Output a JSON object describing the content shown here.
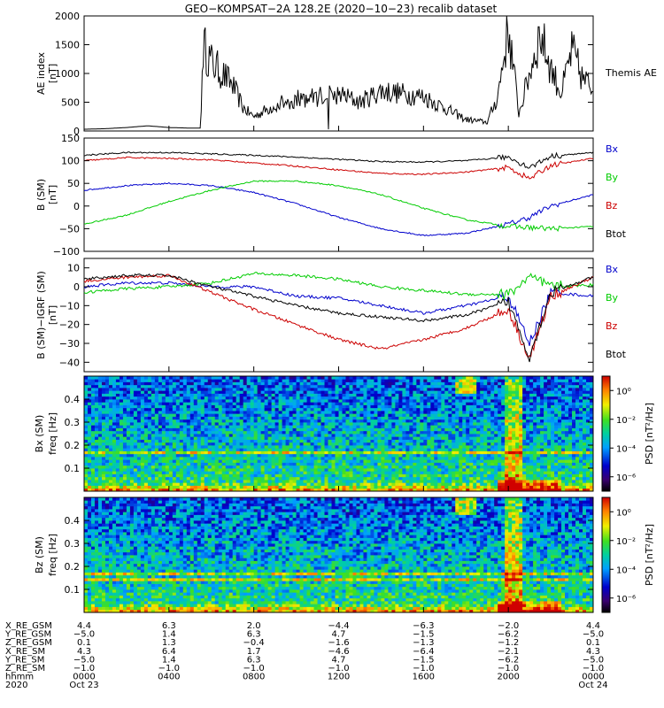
{
  "title": "GEO−KOMPSAT−2A 128.2E (2020−10−23) recalib dataset",
  "panels": {
    "ae": {
      "ylabel1": "AE index",
      "ylabel2": "[nT]",
      "yticks": [
        "0",
        "500",
        "1000",
        "1500",
        "2000"
      ],
      "side_label": "Themis AE"
    },
    "b_sm": {
      "ylabel1": "B (SM)",
      "ylabel2": "[nT]",
      "yticks": [
        "−100",
        "−50",
        "0",
        "50",
        "100",
        "150"
      ]
    },
    "db_sm": {
      "ylabel1": "B (SM)−IGRF (SM)",
      "ylabel2": "[nT]",
      "yticks": [
        "−40",
        "−30",
        "−20",
        "−10",
        "0",
        "10"
      ]
    },
    "spec_bx": {
      "ylabel1": "Bx (SM)",
      "ylabel2": "freq [Hz]",
      "yticks": [
        "0.1",
        "0.2",
        "0.3",
        "0.4"
      ],
      "cbar_label": "PSD [nT²/Hz]",
      "cbar_ticks": [
        "10⁰",
        "10⁻²",
        "10⁻⁴",
        "10⁻⁶"
      ]
    },
    "spec_bz": {
      "ylabel1": "Bz (SM)",
      "ylabel2": "freq [Hz]",
      "yticks": [
        "0.1",
        "0.2",
        "0.3",
        "0.4"
      ],
      "cbar_label": "PSD [nT²/Hz]",
      "cbar_ticks": [
        "10⁰",
        "10⁻²",
        "10⁻⁴",
        "10⁻⁶"
      ]
    }
  },
  "legend": [
    {
      "name": "Bx",
      "color": "#0000cc"
    },
    {
      "name": "By",
      "color": "#00cc00"
    },
    {
      "name": "Bz",
      "color": "#cc0000"
    },
    {
      "name": "Btot",
      "color": "#000000"
    }
  ],
  "ephemeris": {
    "rows": [
      {
        "label": "X_RE_GSM",
        "values": [
          "4.4",
          "6.3",
          "2.0",
          "−4.4",
          "−6.3",
          "−2.0",
          "4.4"
        ]
      },
      {
        "label": "Y_RE_GSM",
        "values": [
          "−5.0",
          "1.4",
          "6.3",
          "4.7",
          "−1.5",
          "−6.2",
          "−5.0"
        ]
      },
      {
        "label": "Z_RE_GSM",
        "values": [
          "0.1",
          "1.3",
          "−0.4",
          "−1.6",
          "−1.3",
          "−1.2",
          "0.1"
        ]
      },
      {
        "label": "X_RE_SM",
        "values": [
          "4.3",
          "6.4",
          "1.7",
          "−4.6",
          "−6.4",
          "−2.1",
          "4.3"
        ]
      },
      {
        "label": "Y_RE_SM",
        "values": [
          "−5.0",
          "1.4",
          "6.3",
          "4.7",
          "−1.5",
          "−6.2",
          "−5.0"
        ]
      },
      {
        "label": "Z_RE_SM",
        "values": [
          "−1.0",
          "−1.0",
          "−1.0",
          "−1.0",
          "−1.0",
          "−1.0",
          "−1.0"
        ]
      },
      {
        "label": "hhmm",
        "values": [
          "0000",
          "0400",
          "0800",
          "1200",
          "1600",
          "2000",
          "0000"
        ]
      },
      {
        "label": "2020",
        "values": [
          "Oct 23",
          "",
          "",
          "",
          "",
          "",
          "Oct 24"
        ]
      }
    ]
  },
  "chart_data": [
    {
      "type": "line",
      "title": "Themis AE",
      "ylabel": "AE index [nT]",
      "xlabel": "hhmm",
      "xlim": [
        0,
        24
      ],
      "ylim": [
        0,
        2000
      ],
      "series": [
        {
          "name": "AE",
          "x": [
            0,
            1,
            2,
            3,
            4,
            5,
            5.5,
            5.6,
            6,
            7,
            7.5,
            8,
            9,
            10,
            11,
            12,
            13,
            14,
            15,
            16,
            17,
            18,
            19,
            19.5,
            20,
            20.5,
            21,
            21.5,
            22,
            22.5,
            23,
            23.5,
            24
          ],
          "y": [
            30,
            40,
            60,
            90,
            60,
            50,
            50,
            1500,
            1200,
            800,
            400,
            250,
            450,
            550,
            600,
            650,
            500,
            700,
            650,
            600,
            400,
            200,
            150,
            600,
            1800,
            300,
            1000,
            1700,
            1100,
            650,
            1400,
            900,
            750
          ]
        }
      ]
    },
    {
      "type": "line",
      "title": "B (SM)",
      "ylabel": "B (SM) [nT]",
      "xlim": [
        0,
        24
      ],
      "ylim": [
        -100,
        150
      ],
      "series": [
        {
          "name": "Bx",
          "color": "#0000cc",
          "x": [
            0,
            2,
            4,
            6,
            8,
            10,
            12,
            14,
            16,
            18,
            20,
            21,
            22,
            24
          ],
          "y": [
            35,
            45,
            50,
            45,
            30,
            5,
            -25,
            -50,
            -65,
            -60,
            -40,
            -25,
            0,
            25
          ]
        },
        {
          "name": "By",
          "color": "#00cc00",
          "x": [
            0,
            2,
            4,
            6,
            8,
            10,
            12,
            14,
            16,
            18,
            20,
            22,
            24
          ],
          "y": [
            -40,
            -20,
            10,
            35,
            55,
            55,
            45,
            25,
            -5,
            -30,
            -45,
            -50,
            -45
          ]
        },
        {
          "name": "Bz",
          "color": "#cc0000",
          "x": [
            0,
            2,
            4,
            6,
            8,
            10,
            12,
            14,
            16,
            18,
            20,
            21,
            22,
            24
          ],
          "y": [
            100,
            107,
            105,
            102,
            95,
            88,
            80,
            72,
            70,
            75,
            85,
            60,
            90,
            105
          ]
        },
        {
          "name": "Btot",
          "color": "#000000",
          "x": [
            0,
            2,
            4,
            6,
            8,
            10,
            12,
            14,
            16,
            18,
            20,
            21,
            22,
            24
          ],
          "y": [
            112,
            118,
            118,
            115,
            112,
            108,
            103,
            98,
            97,
            100,
            108,
            85,
            110,
            118
          ]
        }
      ]
    },
    {
      "type": "line",
      "title": "B (SM)−IGRF (SM)",
      "ylabel": "B (SM)−IGRF (SM) [nT]",
      "xlim": [
        0,
        24
      ],
      "ylim": [
        -45,
        15
      ],
      "series": [
        {
          "name": "Bx",
          "color": "#0000cc",
          "x": [
            0,
            2,
            4,
            6,
            8,
            10,
            12,
            14,
            16,
            18,
            20,
            21,
            22,
            24
          ],
          "y": [
            0,
            2,
            2,
            0,
            0,
            -5,
            -6,
            -10,
            -14,
            -10,
            -5,
            -30,
            -3,
            -5
          ]
        },
        {
          "name": "By",
          "color": "#00cc00",
          "x": [
            0,
            2,
            4,
            6,
            8,
            10,
            12,
            14,
            16,
            18,
            20,
            21,
            22,
            24
          ],
          "y": [
            -3,
            -1,
            0,
            2,
            7,
            6,
            4,
            0,
            -2,
            -4,
            -4,
            5,
            0,
            1
          ]
        },
        {
          "name": "Bz",
          "color": "#cc0000",
          "x": [
            0,
            2,
            4,
            6,
            8,
            10,
            12,
            14,
            16,
            18,
            20,
            21,
            22,
            24
          ],
          "y": [
            3,
            5,
            6,
            -3,
            -12,
            -20,
            -28,
            -33,
            -28,
            -22,
            -12,
            -38,
            -5,
            5
          ]
        },
        {
          "name": "Btot",
          "color": "#000000",
          "x": [
            0,
            2,
            4,
            6,
            8,
            10,
            12,
            14,
            16,
            18,
            20,
            21,
            22,
            24
          ],
          "y": [
            4,
            6,
            6,
            0,
            -5,
            -10,
            -14,
            -16,
            -18,
            -15,
            -8,
            -37,
            -3,
            5
          ]
        }
      ]
    },
    {
      "type": "heatmap",
      "title": "Bx (SM) PSD",
      "ylabel": "Bx (SM) freq [Hz]",
      "xlim": [
        0,
        24
      ],
      "ylim": [
        0,
        0.5
      ],
      "colorbar": {
        "label": "PSD [nT²/Hz]",
        "range_log10": [
          -7,
          1
        ]
      },
      "features": [
        {
          "x": 20.2,
          "y_range": [
            0,
            0.5
          ],
          "log10_psd": -1
        },
        {
          "freq": 0.17,
          "log10_psd": -2.5
        }
      ]
    },
    {
      "type": "heatmap",
      "title": "Bz (SM) PSD",
      "ylabel": "Bz (SM) freq [Hz]",
      "xlim": [
        0,
        24
      ],
      "ylim": [
        0,
        0.5
      ],
      "colorbar": {
        "label": "PSD [nT²/Hz]",
        "range_log10": [
          -7,
          1
        ]
      },
      "features": [
        {
          "x": 20.2,
          "y_range": [
            0,
            0.5
          ],
          "log10_psd": -1
        },
        {
          "freq": 0.17,
          "log10_psd": -2.5
        },
        {
          "freq": 0.14,
          "log10_psd": -3
        }
      ]
    }
  ]
}
